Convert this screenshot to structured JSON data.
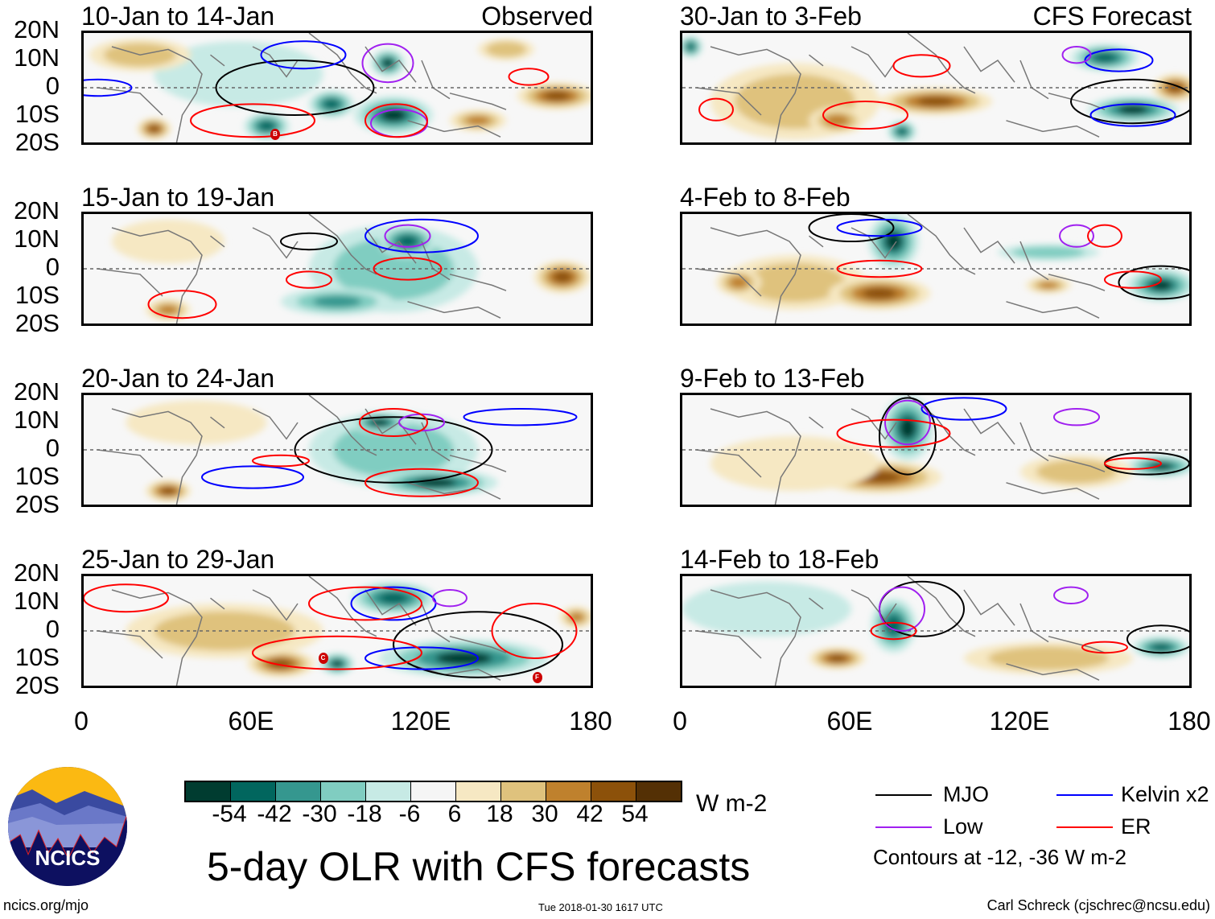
{
  "colors": {
    "scale": [
      "#003c30",
      "#01665e",
      "#35978f",
      "#80cdc1",
      "#c7eae5",
      "#f5f5f5",
      "#f6e8c3",
      "#dfc27d",
      "#bf812d",
      "#8c510a",
      "#543005"
    ],
    "MJO": "#000000",
    "Kelvin": "#0000ff",
    "Low": "#a020f0",
    "ER": "#ff0000",
    "coast": "#777777"
  },
  "lat_labels": [
    "20N",
    "10N",
    "0",
    "10S",
    "20S"
  ],
  "lon_labels": [
    "0",
    "60E",
    "120E",
    "180"
  ],
  "panels": [
    {
      "title": "10-Jan to 14-Jan",
      "label": "Observed",
      "blobs": [
        {
          "lon": 55,
          "lat": 5,
          "rl": 30,
          "rt": 12,
          "v": -6
        },
        {
          "lon": 20,
          "lat": 12,
          "rl": 18,
          "rt": 6,
          "v": 18
        },
        {
          "lon": 110,
          "lat": -10,
          "rl": 14,
          "rt": 7,
          "v": -54
        },
        {
          "lon": 88,
          "lat": -6,
          "rl": 8,
          "rt": 5,
          "v": -42
        },
        {
          "lon": 108,
          "lat": 9,
          "rl": 6,
          "rt": 5,
          "v": -54
        },
        {
          "lon": 65,
          "lat": -14,
          "rl": 8,
          "rt": 5,
          "v": -42
        },
        {
          "lon": 168,
          "lat": -3,
          "rl": 14,
          "rt": 5,
          "v": 42
        },
        {
          "lon": 140,
          "lat": -12,
          "rl": 10,
          "rt": 4,
          "v": 30
        },
        {
          "lon": 25,
          "lat": -15,
          "rl": 6,
          "rt": 4,
          "v": 42
        },
        {
          "lon": 150,
          "lat": 14,
          "rl": 10,
          "rt": 4,
          "v": 18
        }
      ],
      "contours": [
        {
          "t": "MJO",
          "lon": 75,
          "lat": 0,
          "rl": 28,
          "rt": 10
        },
        {
          "t": "Kelvin",
          "lon": 5,
          "lat": 0,
          "rl": 12,
          "rt": 3
        },
        {
          "t": "Kelvin",
          "lon": 78,
          "lat": 12,
          "rl": 15,
          "rt": 5
        },
        {
          "t": "Low",
          "lon": 108,
          "lat": 9,
          "rl": 9,
          "rt": 7
        },
        {
          "t": "Low",
          "lon": 112,
          "lat": -13,
          "rl": 10,
          "rt": 5
        },
        {
          "t": "ER",
          "lon": 158,
          "lat": 4,
          "rl": 7,
          "rt": 3
        },
        {
          "t": "ER",
          "lon": 60,
          "lat": -12,
          "rl": 22,
          "rt": 6
        },
        {
          "t": "ER",
          "lon": 111,
          "lat": -12,
          "rl": 11,
          "rt": 6
        }
      ],
      "storms": [
        {
          "label": "B",
          "lon": 68,
          "lat": -17
        }
      ]
    },
    {
      "title": "30-Jan to 3-Feb",
      "label": "CFS Forecast",
      "blobs": [
        {
          "lon": 40,
          "lat": -5,
          "rl": 30,
          "rt": 14,
          "v": 18
        },
        {
          "lon": 90,
          "lat": -5,
          "rl": 20,
          "rt": 5,
          "v": 42
        },
        {
          "lon": 55,
          "lat": -12,
          "rl": 10,
          "rt": 5,
          "v": 30
        },
        {
          "lon": 150,
          "lat": 11,
          "rl": 12,
          "rt": 5,
          "v": -42
        },
        {
          "lon": 160,
          "lat": -8,
          "rl": 16,
          "rt": 5,
          "v": -54
        },
        {
          "lon": 175,
          "lat": 0,
          "rl": 8,
          "rt": 5,
          "v": 42
        },
        {
          "lon": 78,
          "lat": -16,
          "rl": 5,
          "rt": 4,
          "v": -42
        },
        {
          "lon": 3,
          "lat": 15,
          "rl": 4,
          "rt": 4,
          "v": -42
        }
      ],
      "contours": [
        {
          "t": "MJO",
          "lon": 160,
          "lat": -5,
          "rl": 22,
          "rt": 8
        },
        {
          "t": "Kelvin",
          "lon": 155,
          "lat": 10,
          "rl": 12,
          "rt": 4
        },
        {
          "t": "Kelvin",
          "lon": 160,
          "lat": -10,
          "rl": 15,
          "rt": 4
        },
        {
          "t": "Low",
          "lon": 140,
          "lat": 12,
          "rl": 5,
          "rt": 3
        },
        {
          "t": "ER",
          "lon": 85,
          "lat": 8,
          "rl": 10,
          "rt": 4
        },
        {
          "t": "ER",
          "lon": 65,
          "lat": -10,
          "rl": 15,
          "rt": 5
        },
        {
          "t": "ER",
          "lon": 12,
          "lat": -8,
          "rl": 6,
          "rt": 4
        }
      ],
      "storms": []
    },
    {
      "title": "15-Jan to 19-Jan",
      "label": "",
      "blobs": [
        {
          "lon": 110,
          "lat": 0,
          "rl": 30,
          "rt": 16,
          "v": -18
        },
        {
          "lon": 115,
          "lat": 10,
          "rl": 10,
          "rt": 6,
          "v": -42
        },
        {
          "lon": 90,
          "lat": -12,
          "rl": 20,
          "rt": 5,
          "v": -30
        },
        {
          "lon": 170,
          "lat": -3,
          "rl": 10,
          "rt": 6,
          "v": 42
        },
        {
          "lon": 30,
          "lat": -15,
          "rl": 8,
          "rt": 4,
          "v": 30
        },
        {
          "lon": 30,
          "lat": 10,
          "rl": 20,
          "rt": 8,
          "v": 6
        }
      ],
      "contours": [
        {
          "t": "MJO",
          "lon": 80,
          "lat": 10,
          "rl": 10,
          "rt": 3
        },
        {
          "t": "Kelvin",
          "lon": 120,
          "lat": 12,
          "rl": 20,
          "rt": 6
        },
        {
          "t": "Low",
          "lon": 115,
          "lat": 12,
          "rl": 8,
          "rt": 4
        },
        {
          "t": "ER",
          "lon": 80,
          "lat": -4,
          "rl": 8,
          "rt": 3
        },
        {
          "t": "ER",
          "lon": 35,
          "lat": -13,
          "rl": 12,
          "rt": 5
        },
        {
          "t": "ER",
          "lon": 115,
          "lat": 0,
          "rl": 12,
          "rt": 4
        }
      ],
      "storms": []
    },
    {
      "title": "4-Feb to 8-Feb",
      "label": "",
      "blobs": [
        {
          "lon": 75,
          "lat": 10,
          "rl": 9,
          "rt": 10,
          "v": -54
        },
        {
          "lon": 40,
          "lat": -5,
          "rl": 25,
          "rt": 10,
          "v": 18
        },
        {
          "lon": 70,
          "lat": -9,
          "rl": 18,
          "rt": 6,
          "v": 42
        },
        {
          "lon": 20,
          "lat": -5,
          "rl": 8,
          "rt": 5,
          "v": 30
        },
        {
          "lon": 170,
          "lat": -6,
          "rl": 12,
          "rt": 6,
          "v": -54
        },
        {
          "lon": 130,
          "lat": -6,
          "rl": 8,
          "rt": 3,
          "v": 30
        },
        {
          "lon": 130,
          "lat": 6,
          "rl": 18,
          "rt": 3,
          "v": -18
        }
      ],
      "contours": [
        {
          "t": "MJO",
          "lon": 170,
          "lat": -5,
          "rl": 15,
          "rt": 6
        },
        {
          "t": "MJO",
          "lon": 60,
          "lat": 15,
          "rl": 15,
          "rt": 5
        },
        {
          "t": "Kelvin",
          "lon": 70,
          "lat": 15,
          "rl": 15,
          "rt": 3
        },
        {
          "t": "Low",
          "lon": 140,
          "lat": 12,
          "rl": 6,
          "rt": 4
        },
        {
          "t": "ER",
          "lon": 150,
          "lat": 12,
          "rl": 6,
          "rt": 4
        },
        {
          "t": "ER",
          "lon": 160,
          "lat": -4,
          "rl": 10,
          "rt": 3
        },
        {
          "t": "ER",
          "lon": 70,
          "lat": 0,
          "rl": 15,
          "rt": 3
        }
      ],
      "storms": []
    },
    {
      "title": "20-Jan to 24-Jan",
      "label": "",
      "blobs": [
        {
          "lon": 110,
          "lat": 0,
          "rl": 30,
          "rt": 14,
          "v": -18
        },
        {
          "lon": 105,
          "lat": 10,
          "rl": 10,
          "rt": 4,
          "v": -54
        },
        {
          "lon": 125,
          "lat": -12,
          "rl": 22,
          "rt": 5,
          "v": -54
        },
        {
          "lon": 30,
          "lat": -15,
          "rl": 8,
          "rt": 4,
          "v": 42
        },
        {
          "lon": 40,
          "lat": 10,
          "rl": 25,
          "rt": 8,
          "v": 6
        }
      ],
      "contours": [
        {
          "t": "MJO",
          "lon": 110,
          "lat": 0,
          "rl": 35,
          "rt": 12
        },
        {
          "t": "Kelvin",
          "lon": 60,
          "lat": -10,
          "rl": 18,
          "rt": 4
        },
        {
          "t": "Kelvin",
          "lon": 155,
          "lat": 12,
          "rl": 20,
          "rt": 3
        },
        {
          "t": "Low",
          "lon": 120,
          "lat": 10,
          "rl": 8,
          "rt": 3
        },
        {
          "t": "ER",
          "lon": 110,
          "lat": 10,
          "rl": 12,
          "rt": 5
        },
        {
          "t": "ER",
          "lon": 120,
          "lat": -12,
          "rl": 20,
          "rt": 5
        },
        {
          "t": "ER",
          "lon": 70,
          "lat": -4,
          "rl": 10,
          "rt": 2
        }
      ],
      "storms": []
    },
    {
      "title": "9-Feb to 13-Feb",
      "label": "",
      "blobs": [
        {
          "lon": 80,
          "lat": 8,
          "rl": 9,
          "rt": 12,
          "v": -54
        },
        {
          "lon": 70,
          "lat": -10,
          "rl": 22,
          "rt": 6,
          "v": 42
        },
        {
          "lon": 40,
          "lat": -5,
          "rl": 30,
          "rt": 10,
          "v": 6
        },
        {
          "lon": 170,
          "lat": -6,
          "rl": 12,
          "rt": 4,
          "v": -54
        },
        {
          "lon": 140,
          "lat": -8,
          "rl": 20,
          "rt": 6,
          "v": 18
        }
      ],
      "contours": [
        {
          "t": "MJO",
          "lon": 80,
          "lat": 5,
          "rl": 10,
          "rt": 14
        },
        {
          "t": "MJO",
          "lon": 165,
          "lat": -5,
          "rl": 15,
          "rt": 4
        },
        {
          "t": "Kelvin",
          "lon": 100,
          "lat": 15,
          "rl": 15,
          "rt": 4
        },
        {
          "t": "Low",
          "lon": 80,
          "lat": 10,
          "rl": 8,
          "rt": 8
        },
        {
          "t": "Low",
          "lon": 140,
          "lat": 12,
          "rl": 8,
          "rt": 3
        },
        {
          "t": "ER",
          "lon": 75,
          "lat": 6,
          "rl": 20,
          "rt": 5
        },
        {
          "t": "ER",
          "lon": 160,
          "lat": -5,
          "rl": 10,
          "rt": 2
        }
      ],
      "storms": []
    },
    {
      "title": "25-Jan to 29-Jan",
      "label": "",
      "blobs": [
        {
          "lon": 110,
          "lat": 12,
          "rl": 15,
          "rt": 6,
          "v": -42
        },
        {
          "lon": 135,
          "lat": -10,
          "rl": 30,
          "rt": 7,
          "v": -54
        },
        {
          "lon": 90,
          "lat": -12,
          "rl": 6,
          "rt": 4,
          "v": -54
        },
        {
          "lon": 70,
          "lat": -12,
          "rl": 12,
          "rt": 5,
          "v": 42
        },
        {
          "lon": 50,
          "lat": 0,
          "rl": 35,
          "rt": 10,
          "v": 18
        },
        {
          "lon": 175,
          "lat": 5,
          "rl": 6,
          "rt": 4,
          "v": 30
        }
      ],
      "contours": [
        {
          "t": "MJO",
          "lon": 140,
          "lat": -5,
          "rl": 30,
          "rt": 12
        },
        {
          "t": "Kelvin",
          "lon": 110,
          "lat": 10,
          "rl": 15,
          "rt": 6
        },
        {
          "t": "Kelvin",
          "lon": 120,
          "lat": -10,
          "rl": 20,
          "rt": 4
        },
        {
          "t": "Low",
          "lon": 130,
          "lat": 12,
          "rl": 6,
          "rt": 3
        },
        {
          "t": "ER",
          "lon": 100,
          "lat": 10,
          "rl": 20,
          "rt": 6
        },
        {
          "t": "ER",
          "lon": 90,
          "lat": -8,
          "rl": 30,
          "rt": 6
        },
        {
          "t": "ER",
          "lon": 160,
          "lat": 0,
          "rl": 15,
          "rt": 10
        },
        {
          "t": "ER",
          "lon": 15,
          "lat": 12,
          "rl": 15,
          "rt": 5
        }
      ],
      "storms": [
        {
          "label": "C",
          "lon": 85,
          "lat": -10
        },
        {
          "label": "F",
          "lon": 161,
          "lat": -17
        }
      ]
    },
    {
      "title": "14-Feb to 18-Feb",
      "label": "",
      "blobs": [
        {
          "lon": 75,
          "lat": 2,
          "rl": 8,
          "rt": 10,
          "v": -42
        },
        {
          "lon": 55,
          "lat": -10,
          "rl": 10,
          "rt": 4,
          "v": 42
        },
        {
          "lon": 130,
          "lat": -10,
          "rl": 30,
          "rt": 6,
          "v": 18
        },
        {
          "lon": 170,
          "lat": -6,
          "rl": 10,
          "rt": 4,
          "v": -42
        },
        {
          "lon": 30,
          "lat": 8,
          "rl": 30,
          "rt": 10,
          "v": -6
        }
      ],
      "contours": [
        {
          "t": "MJO",
          "lon": 85,
          "lat": 8,
          "rl": 15,
          "rt": 10
        },
        {
          "t": "MJO",
          "lon": 170,
          "lat": -3,
          "rl": 12,
          "rt": 5
        },
        {
          "t": "Low",
          "lon": 78,
          "lat": 8,
          "rl": 8,
          "rt": 8
        },
        {
          "t": "Low",
          "lon": 138,
          "lat": 13,
          "rl": 6,
          "rt": 3
        },
        {
          "t": "ER",
          "lon": 75,
          "lat": 0,
          "rl": 8,
          "rt": 3
        },
        {
          "t": "ER",
          "lon": 150,
          "lat": -6,
          "rl": 8,
          "rt": 2
        }
      ],
      "storms": []
    }
  ],
  "colorbar": {
    "labels": [
      "-54",
      "-42",
      "-30",
      "-18",
      "-6",
      "6",
      "18",
      "30",
      "42",
      "54"
    ],
    "units": "W m-2"
  },
  "legend": {
    "mjo": "MJO",
    "kelvin": "Kelvin x2",
    "low": "Low",
    "er": "ER",
    "note": "Contours at -12, -36 W m-2"
  },
  "title": "5-day OLR with CFS forecasts",
  "logo_text": "NCICS",
  "footer": {
    "url": "ncics.org/mjo",
    "timestamp": "Tue 2018-01-30 1617 UTC",
    "author": "Carl Schreck (cjschrec@ncsu.edu)"
  }
}
